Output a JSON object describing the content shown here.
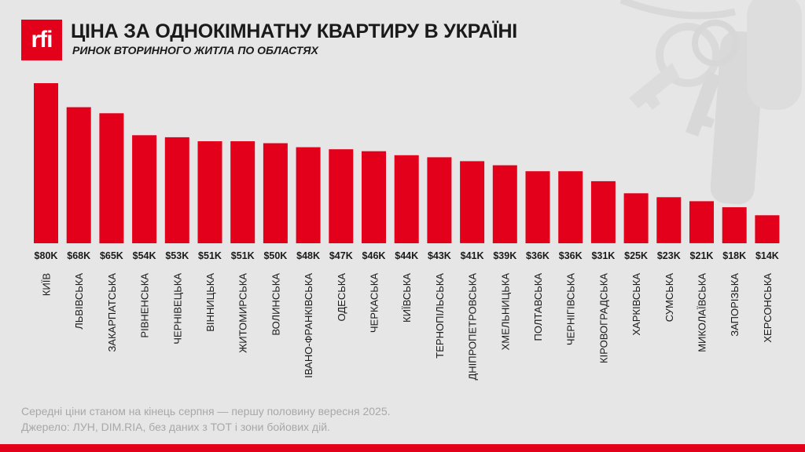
{
  "logo_text": "rfi",
  "chart_data": {
    "type": "bar",
    "title": "ЦІНА ЗА ОДНОКІМНАТНУ КВАРТИРУ В УКРАЇНІ",
    "subtitle": "РИНОК ВТОРИННОГО ЖИТЛА ПО ОБЛАСТЯХ",
    "xlabel": "",
    "ylabel": "",
    "ylim": [
      0,
      80
    ],
    "unit": "thousand USD",
    "categories": [
      "КИЇВ",
      "ЛЬВІВСЬКА",
      "ЗАКАРПАТСЬКА",
      "РІВНЕНСЬКА",
      "ЧЕРНІВЕЦЬКА",
      "ВІННИЦЬКА",
      "ЖИТОМИРСЬКА",
      "ВОЛИНСЬКА",
      "ІВАНО-ФРАНКІВСЬКА",
      "ОДЕСЬКА",
      "ЧЕРКАСЬКА",
      "КИЇВСЬКА",
      "ТЕРНОПІЛЬСЬКА",
      "ДНІПРОПЕТРОВСЬКА",
      "ХМЕЛЬНИЦЬКА",
      "ПОЛТАВСЬКА",
      "ЧЕРНІГІВСЬКА",
      "КІРОВОГРАДСЬКА",
      "ХАРКІВСЬКА",
      "СУМСЬКА",
      "МИКОЛАЇВСЬКА",
      "ЗАПОРІЗЬКА",
      "ХЕРСОНСЬКА"
    ],
    "values": [
      80,
      68,
      65,
      54,
      53,
      51,
      51,
      50,
      48,
      47,
      46,
      44,
      43,
      41,
      39,
      36,
      36,
      31,
      25,
      23,
      21,
      18,
      14
    ],
    "labels": [
      "$80K",
      "$68K",
      "$65K",
      "$54K",
      "$53K",
      "$51K",
      "$51K",
      "$50K",
      "$48K",
      "$47K",
      "$46K",
      "$44K",
      "$43K",
      "$41K",
      "$39K",
      "$36K",
      "$36K",
      "$31K",
      "$25K",
      "$23K",
      "$21K",
      "$18K",
      "$14K"
    ],
    "grid": false,
    "legend": "none"
  },
  "footnote": {
    "note": "Середні ціни станом на кінець серпня — першу половину вересня 2025.",
    "source": "Джерело: ЛУН, DIM.RIA, без даних з ТОТ і зони бойових дій."
  },
  "colors": {
    "bar": "#e3001b",
    "background": "#e6e6e6",
    "text": "#1a1a1a",
    "footnote": "#a8a8a8"
  }
}
